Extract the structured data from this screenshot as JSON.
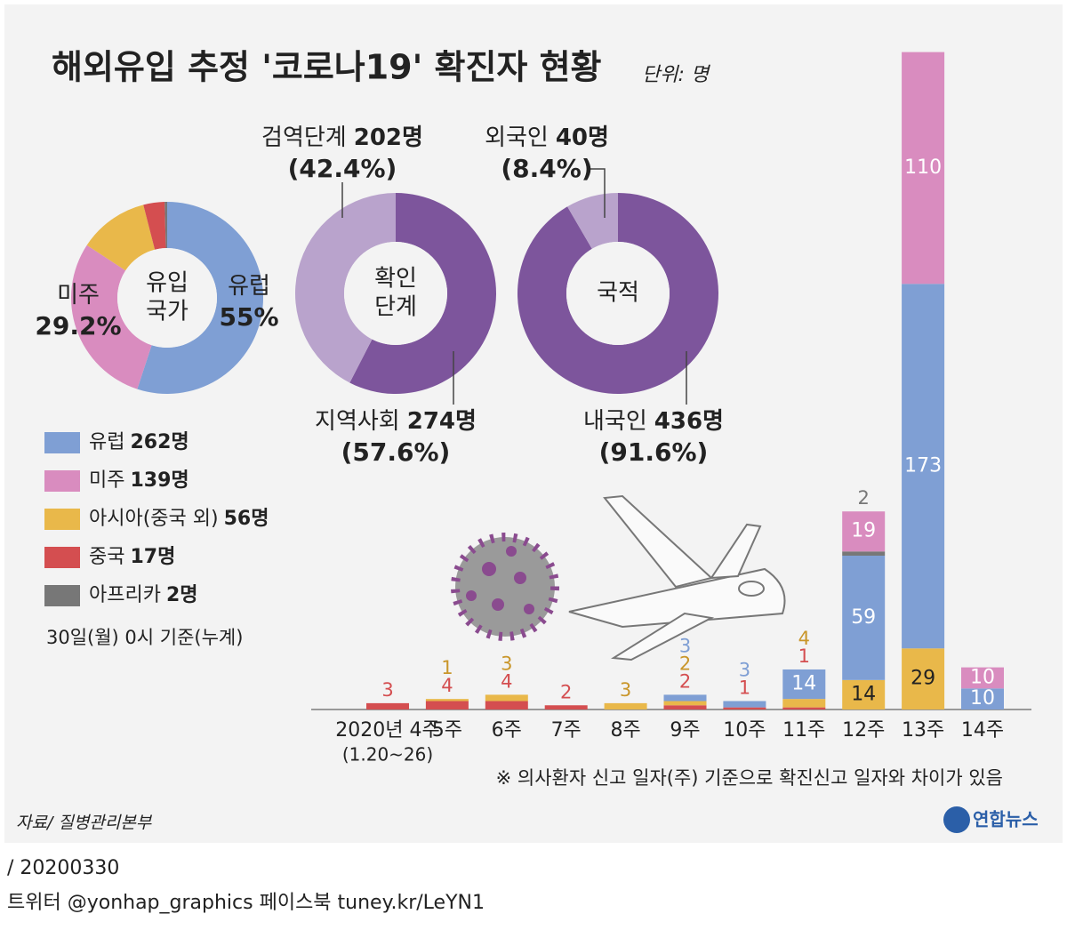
{
  "title": "해외유입 추정 '코로나19' 확진자 현황",
  "unit": "단위: 명",
  "source": "자료/ 질병관리본부",
  "logo": "연합뉴스",
  "footer": {
    "date": "/ 20200330",
    "social": "트위터 @yonhap_graphics  페이스북 tuney.kr/LeYN1"
  },
  "chart_data": [
    {
      "type": "donut",
      "center_label": [
        "유입",
        "국가"
      ],
      "categories": [
        "유럽",
        "미주",
        "아시아(중국 외)",
        "중국",
        "아프리카"
      ],
      "values": [
        262,
        139,
        56,
        17,
        2
      ],
      "value_labels": [
        "262명",
        "139명",
        "56명",
        "17명",
        "2명"
      ],
      "percent_labels": [
        "55%",
        "29.2%",
        null,
        null,
        null
      ],
      "colors": [
        "#7f9fd4",
        "#d98cbf",
        "#e9b84a",
        "#d44e50",
        "#777777"
      ],
      "note": "30일(월) 0시 기준(누계)"
    },
    {
      "type": "donut",
      "center_label": [
        "확인",
        "단계"
      ],
      "categories": [
        "지역사회",
        "검역단계"
      ],
      "values": [
        274,
        202
      ],
      "value_labels": [
        "274명",
        "202명"
      ],
      "percent_labels": [
        "(57.6%)",
        "(42.4%)"
      ],
      "colors": [
        "#7d559c",
        "#b9a3cc"
      ]
    },
    {
      "type": "donut",
      "center_label": [
        "국적"
      ],
      "categories": [
        "내국인",
        "외국인"
      ],
      "values": [
        436,
        40
      ],
      "value_labels": [
        "436명",
        "40명"
      ],
      "percent_labels": [
        "(91.6%)",
        "(8.4%)"
      ],
      "colors": [
        "#7d559c",
        "#b9a3cc"
      ]
    },
    {
      "type": "stacked_bar",
      "categories": [
        "2020년 4주",
        "5주",
        "6주",
        "7주",
        "8주",
        "9주",
        "10주",
        "11주",
        "12주",
        "13주",
        "14주"
      ],
      "category_note": "(1.20~26)",
      "series": [
        {
          "color": "#d44e50",
          "values": [
            3,
            4,
            4,
            2,
            null,
            2,
            1,
            1,
            null,
            null,
            null
          ]
        },
        {
          "color": "#e9b84a",
          "values": [
            null,
            1,
            3,
            null,
            3,
            2,
            null,
            4,
            14,
            29,
            null
          ]
        },
        {
          "color": "#7f9fd4",
          "values": [
            null,
            null,
            null,
            null,
            null,
            3,
            3,
            14,
            59,
            173,
            10
          ]
        },
        {
          "color": "#777777",
          "values": [
            null,
            null,
            null,
            null,
            null,
            null,
            null,
            null,
            2,
            null,
            null
          ]
        },
        {
          "color": "#d98cbf",
          "values": [
            null,
            null,
            null,
            null,
            null,
            null,
            null,
            null,
            19,
            110,
            10
          ]
        }
      ],
      "footnote": "※ 의사환자 신고 일자(주) 기준으로 확진신고 일자와 차이가 있음"
    }
  ]
}
